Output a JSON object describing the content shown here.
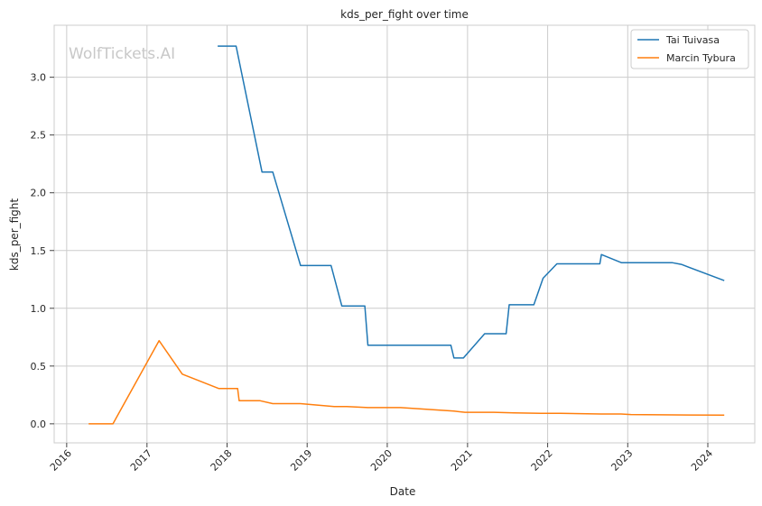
{
  "watermark": "WolfTickets.AI",
  "chart_data": {
    "type": "line",
    "title": "kds_per_fight over time",
    "xlabel": "Date",
    "ylabel": "kds_per_fight",
    "xlim": [
      "2015-11-05",
      "2024-08-02"
    ],
    "ylim": [
      -0.165,
      3.45
    ],
    "x_ticks": [
      "2016",
      "2017",
      "2018",
      "2019",
      "2020",
      "2021",
      "2022",
      "2023",
      "2024"
    ],
    "y_ticks": [
      "0.0",
      "0.5",
      "1.0",
      "1.5",
      "2.0",
      "2.5",
      "3.0"
    ],
    "grid": true,
    "legend_position": "top-right",
    "colors": {
      "Tai Tuivasa": "#1f77b4",
      "Marcin Tybura": "#ff7f0e"
    },
    "series": [
      {
        "name": "Tai Tuivasa",
        "color": "#1f77b4",
        "points": [
          [
            "2017-11-19",
            3.27
          ],
          [
            "2018-02-11",
            3.27
          ],
          [
            "2018-06-09",
            2.18
          ],
          [
            "2018-07-28",
            2.18
          ],
          [
            "2018-12-02",
            1.37
          ],
          [
            "2019-04-20",
            1.37
          ],
          [
            "2019-06-08",
            1.02
          ],
          [
            "2019-09-21",
            1.02
          ],
          [
            "2019-10-05",
            0.68
          ],
          [
            "2020-10-17",
            0.68
          ],
          [
            "2020-10-31",
            0.57
          ],
          [
            "2020-12-13",
            0.57
          ],
          [
            "2021-03-20",
            0.78
          ],
          [
            "2021-06-26",
            0.78
          ],
          [
            "2021-07-10",
            1.03
          ],
          [
            "2021-10-30",
            1.03
          ],
          [
            "2021-12-11",
            1.26
          ],
          [
            "2022-02-12",
            1.385
          ],
          [
            "2022-08-27",
            1.385
          ],
          [
            "2022-09-03",
            1.465
          ],
          [
            "2022-12-03",
            1.395
          ],
          [
            "2023-07-22",
            1.395
          ],
          [
            "2023-09-02",
            1.38
          ],
          [
            "2024-03-16",
            1.24
          ]
        ]
      },
      {
        "name": "Marcin Tybura",
        "color": "#ff7f0e",
        "points": [
          [
            "2016-04-10",
            0.0
          ],
          [
            "2016-07-30",
            0.0
          ],
          [
            "2017-02-25",
            0.72
          ],
          [
            "2017-06-11",
            0.43
          ],
          [
            "2017-11-25",
            0.305
          ],
          [
            "2018-02-18",
            0.305
          ],
          [
            "2018-02-25",
            0.2
          ],
          [
            "2018-06-01",
            0.2
          ],
          [
            "2018-07-28",
            0.175
          ],
          [
            "2018-12-01",
            0.175
          ],
          [
            "2019-05-04",
            0.15
          ],
          [
            "2019-07-01",
            0.15
          ],
          [
            "2019-10-05",
            0.14
          ],
          [
            "2020-03-01",
            0.14
          ],
          [
            "2020-10-31",
            0.11
          ],
          [
            "2020-12-20",
            0.1
          ],
          [
            "2021-05-01",
            0.1
          ],
          [
            "2021-08-01",
            0.095
          ],
          [
            "2021-12-01",
            0.09
          ],
          [
            "2022-03-01",
            0.09
          ],
          [
            "2022-09-01",
            0.085
          ],
          [
            "2022-12-01",
            0.085
          ],
          [
            "2023-01-15",
            0.08
          ],
          [
            "2023-06-01",
            0.078
          ],
          [
            "2024-03-16",
            0.075
          ]
        ]
      }
    ]
  }
}
